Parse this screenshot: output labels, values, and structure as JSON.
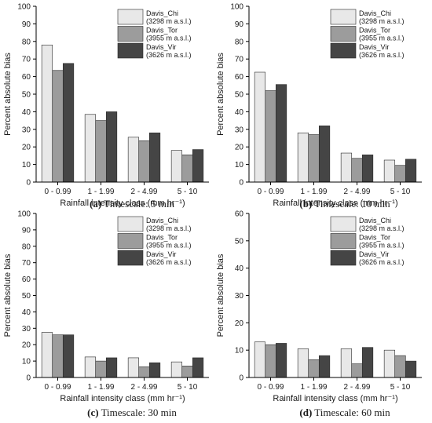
{
  "colors": {
    "chi": "#e8e8e8",
    "tor": "#9c9c9c",
    "vir": "#454545",
    "axis": "#000000"
  },
  "chart_data": [
    {
      "type": "bar",
      "panel": "(a)",
      "caption_letter": "(a)",
      "caption_text": " Timescale: 5 min",
      "xlabel": "Rainfall intensity class (mm hr⁻¹)",
      "ylabel": "Percent absolute bias",
      "ylim": [
        0,
        100
      ],
      "yticks": [
        0,
        10,
        20,
        30,
        40,
        50,
        60,
        70,
        80,
        90,
        100
      ],
      "categories": [
        "0 - 0.99",
        "1 - 1.99",
        "2 - 4.99",
        "5 - 10"
      ],
      "legend_position": "top-right",
      "series": [
        {
          "name": "Davis_Chi",
          "name_sub": "(3298 m a.s.l.)",
          "color_key": "chi",
          "values": [
            78,
            38.5,
            25.5,
            18
          ]
        },
        {
          "name": "Davis_Tor",
          "name_sub": "(3955 m a.s.l.)",
          "color_key": "tor",
          "values": [
            63.5,
            35,
            23.5,
            15.5
          ]
        },
        {
          "name": "Davis_Vir",
          "name_sub": "(3626 m a.s.l.)",
          "color_key": "vir",
          "values": [
            67.5,
            40,
            28,
            18.5
          ]
        }
      ]
    },
    {
      "type": "bar",
      "panel": "(b)",
      "caption_letter": "(b)",
      "caption_text": " Timescale: 10 min",
      "xlabel": "Rainfall intensity class (mm hr⁻¹)",
      "ylabel": "Percent absolute bias",
      "ylim": [
        0,
        100
      ],
      "yticks": [
        0,
        10,
        20,
        30,
        40,
        50,
        60,
        70,
        80,
        90,
        100
      ],
      "categories": [
        "0 - 0.99",
        "1 - 1.99",
        "2 - 4.99",
        "5 - 10"
      ],
      "legend_position": "top-right",
      "series": [
        {
          "name": "Davis_Chi",
          "name_sub": "(3298 m a.s.l.)",
          "color_key": "chi",
          "values": [
            62.5,
            28,
            16.5,
            12.5
          ]
        },
        {
          "name": "Davis_Tor",
          "name_sub": "(3955 m a.s.l.)",
          "color_key": "tor",
          "values": [
            52,
            27,
            13.5,
            9.5
          ]
        },
        {
          "name": "Davis_Vir",
          "name_sub": "(3626 m a.s.l.)",
          "color_key": "vir",
          "values": [
            55.5,
            32,
            15.5,
            13
          ]
        }
      ]
    },
    {
      "type": "bar",
      "panel": "(c)",
      "caption_letter": "(c)",
      "caption_text": " Timescale: 30 min",
      "xlabel": "Rainfall intensity class (mm hr⁻¹)",
      "ylabel": "Percent absolute bias",
      "ylim": [
        0,
        100
      ],
      "yticks": [
        0,
        10,
        20,
        30,
        40,
        50,
        60,
        70,
        80,
        90,
        100
      ],
      "categories": [
        "0 - 0.99",
        "1 - 1.99",
        "2 - 4.99",
        "5 - 10"
      ],
      "legend_position": "top-right",
      "series": [
        {
          "name": "Davis_Chi",
          "name_sub": "(3298 m a.s.l.)",
          "color_key": "chi",
          "values": [
            27.5,
            12.5,
            12,
            9.5
          ]
        },
        {
          "name": "Davis_Tor",
          "name_sub": "(3955 m a.s.l.)",
          "color_key": "tor",
          "values": [
            26,
            10,
            6.5,
            7
          ]
        },
        {
          "name": "Davis_Vir",
          "name_sub": "(3626 m a.s.l.)",
          "color_key": "vir",
          "values": [
            26,
            12,
            9,
            12
          ]
        }
      ]
    },
    {
      "type": "bar",
      "panel": "(d)",
      "caption_letter": "(d)",
      "caption_text": " Timescale: 60 min",
      "xlabel": "Rainfall intensity class (mm hr⁻¹)",
      "ylabel": "Percent absolute bias",
      "ylim": [
        0,
        60
      ],
      "yticks": [
        0,
        10,
        20,
        30,
        40,
        50,
        60
      ],
      "categories": [
        "0 - 0.99",
        "1 - 1.99",
        "2 - 4.99",
        "5 - 10"
      ],
      "legend_position": "top-right",
      "series": [
        {
          "name": "Davis_Chi",
          "name_sub": "(3298 m a.s.l.)",
          "color_key": "chi",
          "values": [
            13,
            10.5,
            10.5,
            10
          ]
        },
        {
          "name": "Davis_Tor",
          "name_sub": "(3955 m a.s.l.)",
          "color_key": "tor",
          "values": [
            12,
            6.5,
            5,
            8
          ]
        },
        {
          "name": "Davis_Vir",
          "name_sub": "(3626 m a.s.l.)",
          "color_key": "vir",
          "values": [
            12.5,
            8,
            11,
            6
          ]
        }
      ]
    }
  ]
}
